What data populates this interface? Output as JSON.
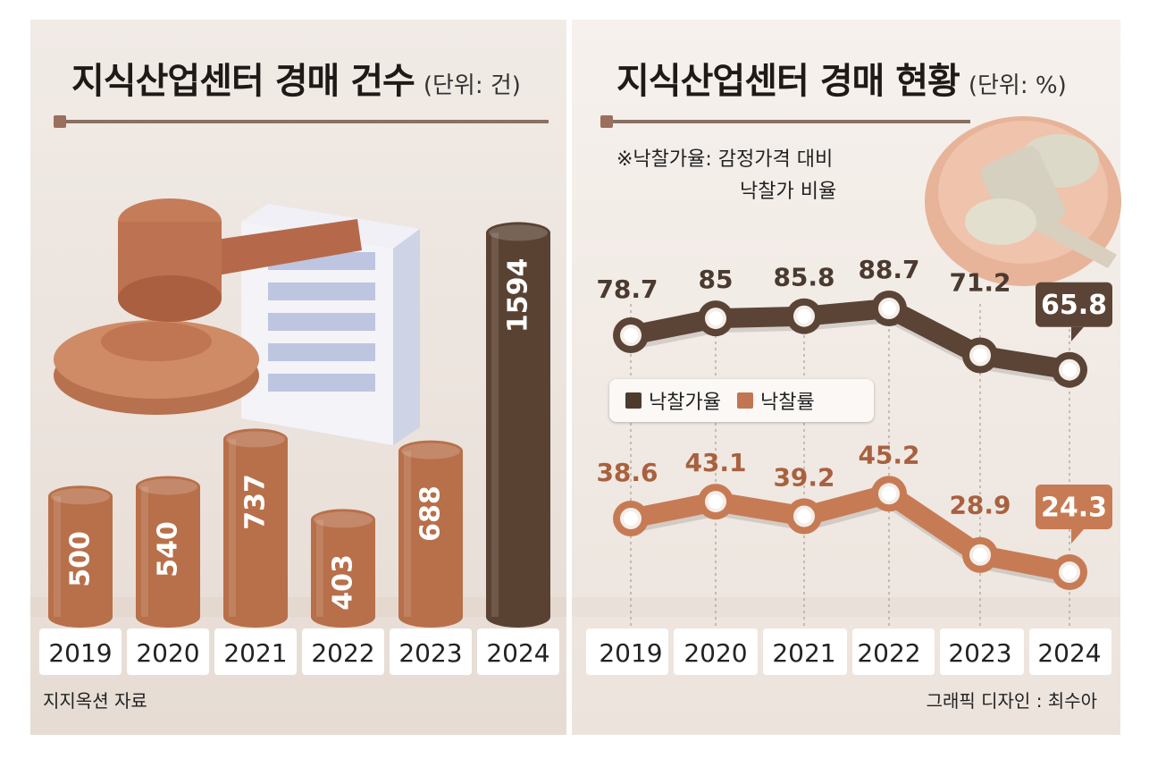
{
  "left": {
    "title": "지식산업센터 경매 건수",
    "unit": "(단위: 건)",
    "source": "지지옥션 자료"
  },
  "right": {
    "title": "지식산업센터 경매 현황",
    "unit": "(단위: %)",
    "note_line1": "※낙찰가율: 감정가격 대비",
    "note_line2": "낙찰가 비율",
    "credit": "그래픽 디자인 : 최수아"
  },
  "colors": {
    "background": "#f3ede8",
    "bar": "#b8704a",
    "bar_highlight": "#5a4232",
    "line_dark": "#5b4436",
    "line_orange": "#c77b54",
    "year_box": "#ffffff"
  },
  "chart_data": [
    {
      "type": "bar",
      "title": "지식산업센터 경매 건수",
      "unit": "(단위: 건)",
      "categories": [
        "2019",
        "2020",
        "2021",
        "2022",
        "2023",
        "2024"
      ],
      "values": [
        500,
        540,
        737,
        403,
        688,
        1594
      ],
      "highlight_index": 5
    },
    {
      "type": "line",
      "title": "지식산업센터 경매 현황",
      "unit": "(단위: %)",
      "categories": [
        "2019",
        "2020",
        "2021",
        "2022",
        "2023",
        "2024"
      ],
      "legend_position": "middle-left",
      "series": [
        {
          "name": "낙찰가율",
          "values": [
            78.7,
            85,
            85.8,
            88.7,
            71.2,
            65.8
          ]
        },
        {
          "name": "낙찰률",
          "values": [
            38.6,
            43.1,
            39.2,
            45.2,
            28.9,
            24.3
          ]
        }
      ]
    }
  ]
}
